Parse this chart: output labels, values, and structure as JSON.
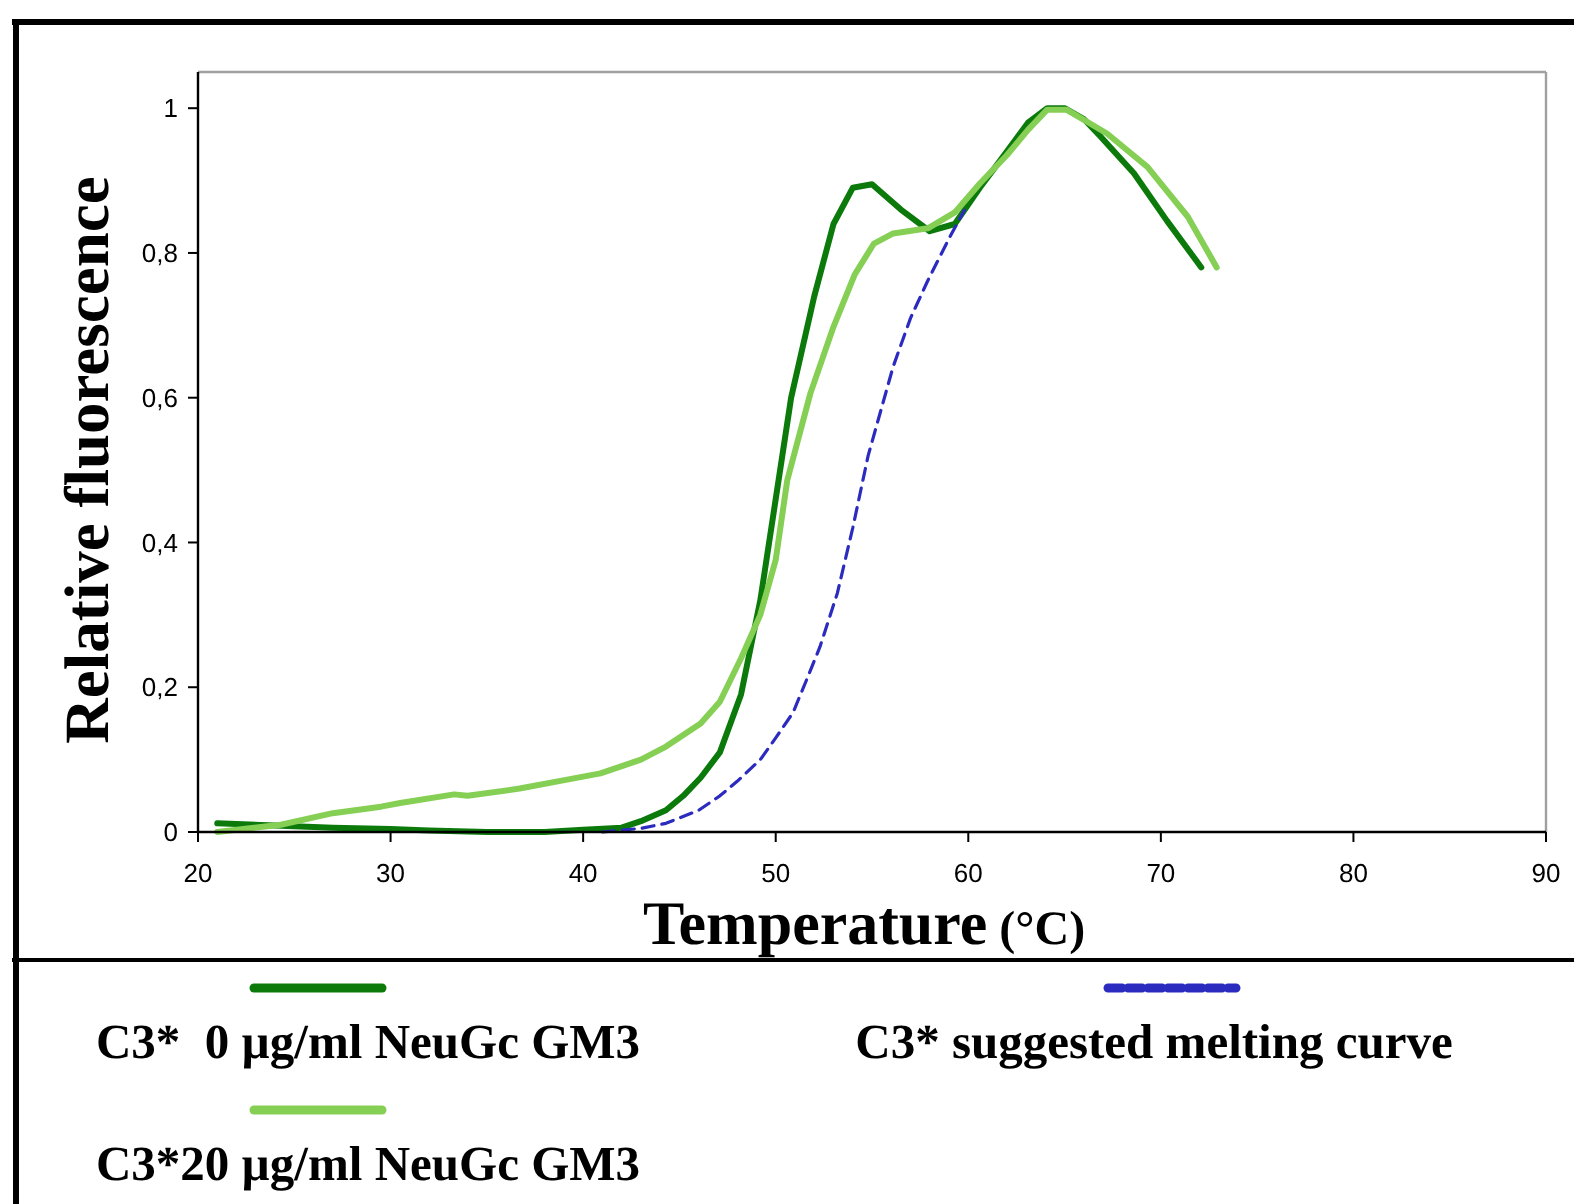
{
  "chart_data": {
    "type": "line",
    "xlabel": "Temperature (°C)",
    "ylabel": "Relative fluorescence",
    "xlim": [
      20,
      90
    ],
    "xticks": [
      20,
      30,
      40,
      50,
      60,
      70,
      80,
      90
    ],
    "ylim": [
      0,
      1.05
    ],
    "yticks": [
      0,
      {
        "value": 0.2,
        "label": "0,2"
      },
      {
        "value": 0.4,
        "label": "0,4"
      },
      {
        "value": 0.6,
        "label": "0,6"
      },
      {
        "value": 0.8,
        "label": "0,8"
      },
      1
    ],
    "grid": false,
    "legend": "bottom",
    "marker": "none",
    "series": [
      {
        "name": "C3*  0 µg/ml NeuGc GM3",
        "color": "#0b7a0b",
        "line_style": "solid",
        "x": [
          21,
          24,
          27,
          30,
          32,
          35,
          38,
          40,
          42,
          43,
          44.3,
          45.2,
          46.1,
          47.1,
          48.2,
          49.2,
          50,
          50.8,
          52,
          53,
          54,
          55,
          56.5,
          58,
          59.3,
          60.6,
          62,
          63.1,
          64.1,
          65,
          66,
          66.9,
          68.6,
          70.3,
          72.1
        ],
        "values": [
          0.012,
          0.009,
          0.006,
          0.004,
          0.002,
          0,
          0,
          0.003,
          0.006,
          0.015,
          0.03,
          0.05,
          0.075,
          0.11,
          0.19,
          0.32,
          0.46,
          0.6,
          0.74,
          0.84,
          0.89,
          0.895,
          0.86,
          0.83,
          0.84,
          0.89,
          0.94,
          0.98,
          1,
          1,
          0.985,
          0.96,
          0.91,
          0.845,
          0.78
        ]
      },
      {
        "name": "C3* suggested melting curve",
        "color": "#2b2bbf",
        "line_style": "dashed",
        "x": [
          41,
          43,
          44.3,
          46,
          47.1,
          48,
          49.2,
          50,
          50.9,
          51.6,
          52.3,
          53.2,
          54,
          54.8,
          56.1,
          57,
          57.9,
          59,
          59.8
        ],
        "values": [
          0,
          0.005,
          0.012,
          0.03,
          0.05,
          0.07,
          0.1,
          0.13,
          0.165,
          0.21,
          0.256,
          0.33,
          0.42,
          0.52,
          0.643,
          0.71,
          0.762,
          0.82,
          0.859
        ]
      },
      {
        "name": "C3*20 µg/ml NeuGc GM3",
        "color": "#86cf55",
        "line_style": "solid",
        "x": [
          21,
          24.3,
          27,
          29.5,
          30.5,
          33.3,
          34,
          36.7,
          39.1,
          40.9,
          43,
          44.3,
          46.1,
          47.1,
          48.2,
          49.2,
          50,
          50.6,
          51.8,
          53,
          54.1,
          55.1,
          56.1,
          57.9,
          59.3,
          60.6,
          62,
          63.1,
          64.1,
          65.1,
          67.2,
          69.3,
          71.4,
          72.9
        ],
        "values": [
          0,
          0.01,
          0.026,
          0.035,
          0.04,
          0.052,
          0.05,
          0.06,
          0.072,
          0.081,
          0.1,
          0.118,
          0.15,
          0.18,
          0.24,
          0.3,
          0.376,
          0.486,
          0.606,
          0.698,
          0.77,
          0.813,
          0.827,
          0.834,
          0.856,
          0.896,
          0.935,
          0.97,
          0.998,
          0.998,
          0.965,
          0.919,
          0.85,
          0.78
        ]
      }
    ]
  }
}
